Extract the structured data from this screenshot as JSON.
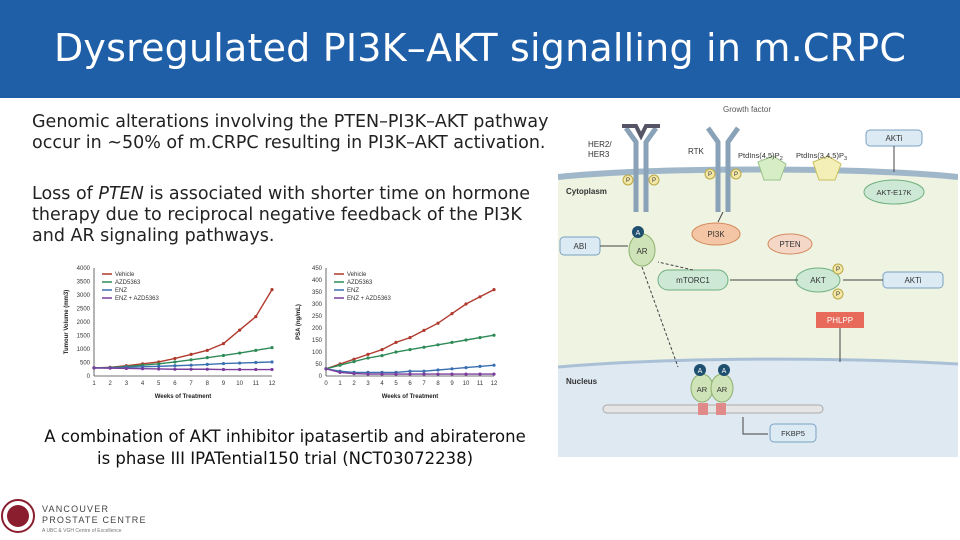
{
  "slide": {
    "title": "Dysregulated PI3K–AKT signalling in m.CRPC",
    "paragraph1": "Genomic alterations involving the PTEN–PI3K–AKT pathway occur in ~50% of m.CRPC resulting in PI3K–AKT activation.",
    "paragraph2_pre": "Loss of ",
    "paragraph2_em": "PTEN",
    "paragraph2_post": " is associated with shorter time on hormone therapy due to reciprocal negative feedback of the PI3K and AR signaling pathways.",
    "caption": "A combination of AKT inhibitor ipatasertib and abiraterone is phase III IPATential150 trial (NCT03072238)"
  },
  "colors": {
    "header": "#1f5fa8",
    "vehicle": "#b03a2e",
    "azd": "#2e8b57",
    "enz": "#3a6fb0",
    "combo": "#7a3e9d"
  },
  "chart_data": [
    {
      "type": "line",
      "ylabel": "Tumour Volume (mm3)",
      "xlabel": "Weeks of Treatment",
      "x": [
        1,
        2,
        3,
        4,
        5,
        6,
        7,
        8,
        9,
        10,
        11,
        12
      ],
      "yticks": [
        0,
        500,
        1000,
        1500,
        2000,
        2500,
        3000,
        3500,
        4000
      ],
      "ylim": [
        0,
        4000
      ],
      "legend": "top-left",
      "series": [
        {
          "name": "Vehicle",
          "values": [
            300,
            320,
            380,
            450,
            520,
            650,
            800,
            950,
            1200,
            1700,
            2200,
            3200
          ]
        },
        {
          "name": "AZD5363",
          "values": [
            300,
            310,
            350,
            400,
            450,
            520,
            600,
            680,
            760,
            850,
            950,
            1050
          ]
        },
        {
          "name": "ENZ",
          "values": [
            300,
            300,
            320,
            340,
            360,
            380,
            400,
            430,
            460,
            480,
            500,
            520
          ]
        },
        {
          "name": "ENZ + AZD5363",
          "values": [
            300,
            290,
            280,
            270,
            260,
            250,
            250,
            250,
            240,
            240,
            240,
            240
          ]
        }
      ]
    },
    {
      "type": "line",
      "ylabel": "PSA (ng/mL)",
      "xlabel": "Weeks of Treatment",
      "x": [
        0,
        1,
        2,
        3,
        4,
        5,
        6,
        7,
        8,
        9,
        10,
        11,
        12
      ],
      "yticks": [
        0,
        50,
        100,
        150,
        200,
        250,
        300,
        350,
        400,
        450
      ],
      "ylim": [
        0,
        450
      ],
      "legend": "top-left",
      "series": [
        {
          "name": "Vehicle",
          "values": [
            30,
            50,
            70,
            90,
            110,
            140,
            160,
            190,
            220,
            260,
            300,
            330,
            360
          ]
        },
        {
          "name": "AZD5363",
          "values": [
            30,
            45,
            60,
            75,
            85,
            100,
            110,
            120,
            130,
            140,
            150,
            160,
            170
          ]
        },
        {
          "name": "ENZ",
          "values": [
            30,
            20,
            15,
            15,
            15,
            15,
            20,
            20,
            25,
            30,
            35,
            40,
            45
          ]
        },
        {
          "name": "ENZ + AZD5363",
          "values": [
            30,
            15,
            10,
            8,
            8,
            8,
            8,
            8,
            8,
            8,
            8,
            8,
            8
          ]
        }
      ]
    }
  ],
  "diagram": {
    "growth_factor": "Growth factor",
    "her": [
      "HER2/",
      "HER3"
    ],
    "rtk": "RTK",
    "pip2": "PtdIns(4,5)P",
    "pip3": "PtdIns(3,4,5)P",
    "sub2": "2",
    "sub3": "3",
    "akti_top": "AKTi",
    "akt_e17k": "AKT-E17K",
    "cytoplasm": "Cytoplasm",
    "abi": "ABI",
    "ar": "AR",
    "a": "A",
    "p": "P",
    "pi3k": "PI3K",
    "pten": "PTEN",
    "mtorc1": "mTORC1",
    "akt": "AKT",
    "akti_mid": "AKTi",
    "phlpp": "PHLPP",
    "nucleus": "Nucleus",
    "fkbp5": "FKBP5"
  },
  "logo": {
    "line1": "VANCOUVER",
    "line2": "PROSTATE CENTRE",
    "line3": "A UBC & VGH Centre of Excellence"
  }
}
